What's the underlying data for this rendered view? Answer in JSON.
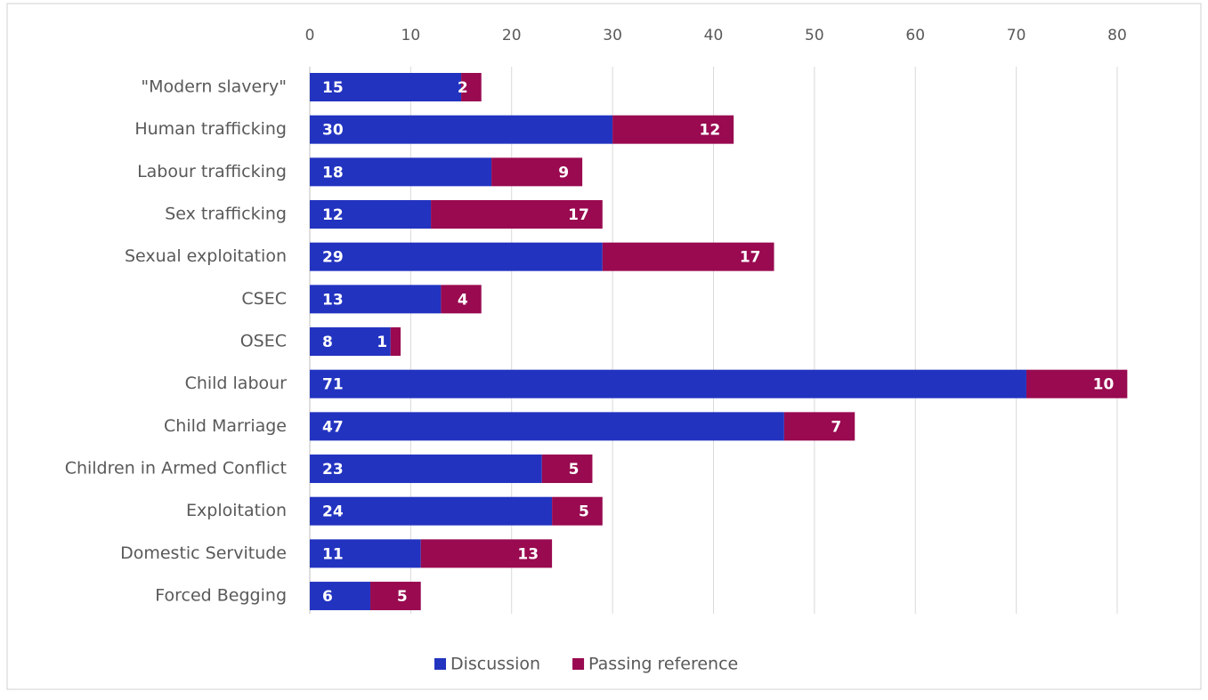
{
  "chart_data": {
    "type": "stacked_barh",
    "categories": [
      "\"Modern slavery\"",
      "Human trafficking",
      "Labour trafficking",
      "Sex trafficking",
      "Sexual exploitation",
      "CSEC",
      "OSEC",
      "Child labour",
      "Child Marriage",
      "Children in Armed Conflict",
      "Exploitation",
      "Domestic Servitude",
      "Forced Begging"
    ],
    "series": [
      {
        "name": "Discussion",
        "color": "#2233c0",
        "values": [
          15,
          30,
          18,
          12,
          29,
          13,
          8,
          71,
          47,
          23,
          24,
          11,
          6
        ]
      },
      {
        "name": "Passing reference",
        "color": "#990a50",
        "values": [
          2,
          12,
          9,
          17,
          17,
          4,
          1,
          10,
          7,
          5,
          5,
          13,
          5
        ]
      }
    ],
    "xlim": [
      0,
      80
    ],
    "xticks": [
      0,
      10,
      20,
      30,
      40,
      50,
      60,
      70,
      80
    ],
    "grid": true,
    "legend": "bottom"
  }
}
